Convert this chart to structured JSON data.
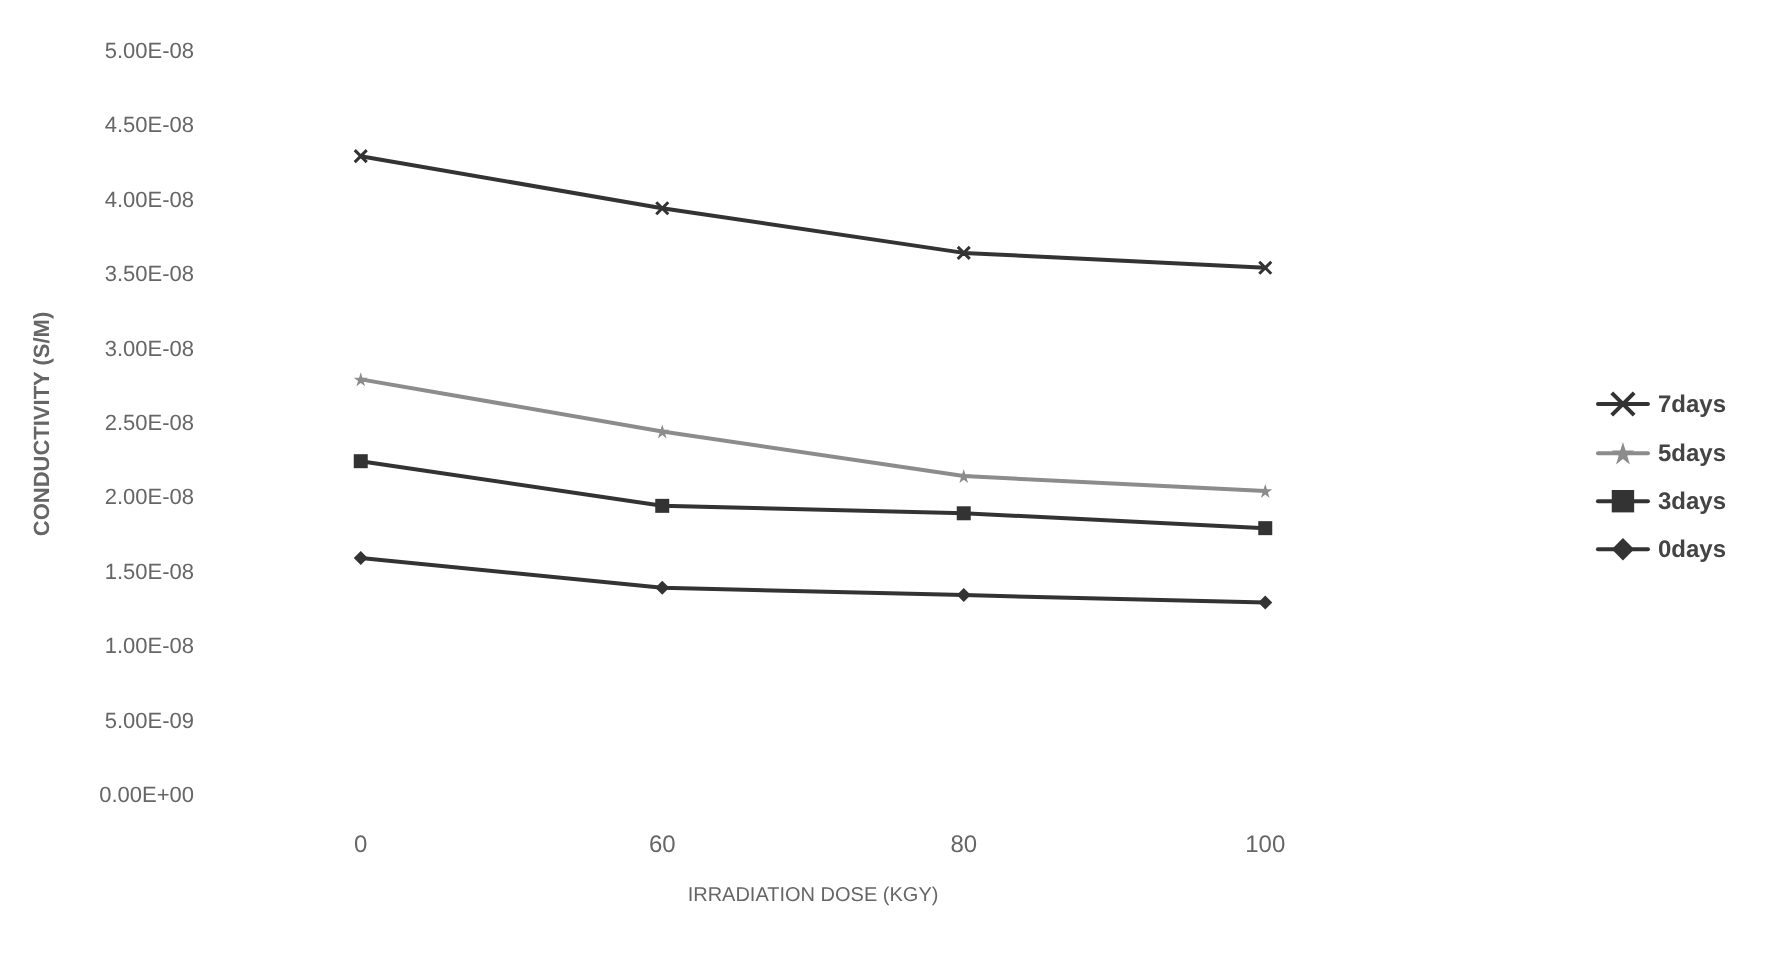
{
  "chart_data": {
    "type": "line",
    "xlabel": "IRRADIATION DOSE (KGY)",
    "ylabel": "CONDUCTIVITY (S/M)",
    "categories": [
      "0",
      "60",
      "80",
      "100"
    ],
    "series": [
      {
        "name": "7days",
        "color": "#333333",
        "marker": "cross",
        "values": [
          4.3e-08,
          3.95e-08,
          3.65e-08,
          3.55e-08
        ]
      },
      {
        "name": "5days",
        "color": "#8c8c8c",
        "marker": "star",
        "values": [
          2.8e-08,
          2.45e-08,
          2.15e-08,
          2.05e-08
        ]
      },
      {
        "name": "3days",
        "color": "#333333",
        "marker": "square",
        "values": [
          2.25e-08,
          1.95e-08,
          1.9e-08,
          1.8e-08
        ]
      },
      {
        "name": "0days",
        "color": "#333333",
        "marker": "diamond",
        "values": [
          1.6e-08,
          1.4e-08,
          1.35e-08,
          1.3e-08
        ]
      }
    ],
    "ylim": [
      0,
      5e-08
    ],
    "yticks": [
      {
        "value": 0,
        "label": "0.00E+00"
      },
      {
        "value": 5e-09,
        "label": "5.00E-09"
      },
      {
        "value": 1e-08,
        "label": "1.00E-08"
      },
      {
        "value": 1.5e-08,
        "label": "1.50E-08"
      },
      {
        "value": 2e-08,
        "label": "2.00E-08"
      },
      {
        "value": 2.5e-08,
        "label": "2.50E-08"
      },
      {
        "value": 3e-08,
        "label": "3.00E-08"
      },
      {
        "value": 3.5e-08,
        "label": "3.50E-08"
      },
      {
        "value": 4e-08,
        "label": "4.00E-08"
      },
      {
        "value": 4.5e-08,
        "label": "4.50E-08"
      },
      {
        "value": 5e-08,
        "label": "5.00E-08"
      }
    ],
    "grid": false,
    "legend": "right",
    "line_style": "solid"
  }
}
